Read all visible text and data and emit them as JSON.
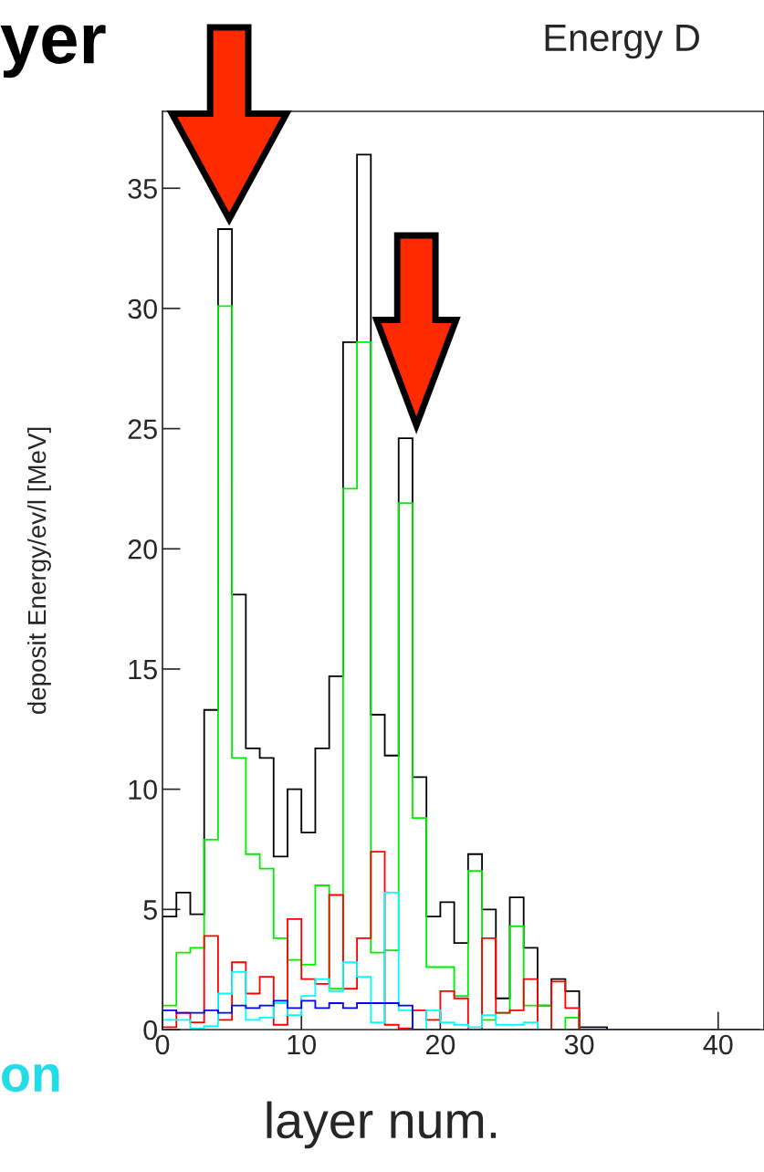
{
  "chart_data": {
    "type": "histogram",
    "title": "Energy D",
    "xlabel": "layer num.",
    "ylabel": "deposit Energy/ev/l [MeV]",
    "annotations": [
      "yer",
      "on"
    ],
    "bins": [
      0,
      1,
      2,
      3,
      4,
      5,
      6,
      7,
      8,
      9,
      10,
      11,
      12,
      13,
      14,
      15,
      16,
      17,
      18,
      19,
      20,
      21,
      22,
      23,
      24,
      25,
      26,
      27,
      28,
      29,
      30,
      31,
      32,
      33,
      34,
      35,
      36,
      37,
      38,
      39,
      40,
      41,
      42,
      43
    ],
    "series": [
      {
        "color": "#000000",
        "values": [
          4.7,
          5.7,
          4.8,
          13.3,
          33.3,
          18.1,
          11.7,
          11.3,
          7.2,
          10.0,
          8.2,
          11.7,
          14.7,
          28.6,
          36.4,
          13.1,
          11.4,
          24.6,
          10.5,
          4.7,
          5.3,
          3.6,
          7.3,
          5.0,
          1.3,
          5.5,
          3.4,
          1.0,
          2.1,
          1.6,
          0.1,
          0.1,
          0,
          0,
          0,
          0,
          0,
          0,
          0,
          0,
          0,
          0,
          0
        ]
      },
      {
        "color": "#00ee00",
        "values": [
          1.0,
          3.2,
          3.4,
          7.9,
          30.1,
          11.3,
          7.3,
          6.7,
          3.8,
          2.9,
          2.7,
          6.0,
          1.7,
          22.5,
          28.6,
          3.2,
          3.3,
          21.9,
          8.8,
          2.6,
          2.6,
          1.4,
          6.6,
          0.4,
          0.7,
          4.3,
          1.0,
          1.0,
          0,
          0.5,
          0,
          0,
          0,
          0,
          0,
          0,
          0,
          0,
          0,
          0,
          0,
          0,
          0
        ]
      },
      {
        "color": "#ff0000",
        "values": [
          0.1,
          0.7,
          0.3,
          3.9,
          0.4,
          2.8,
          1.5,
          2.2,
          0.2,
          4.6,
          2.1,
          1.9,
          5.6,
          1.7,
          3.8,
          7.4,
          0.2,
          0.05,
          0.8,
          0.4,
          1.6,
          1.3,
          0,
          3.8,
          0.7,
          0.8,
          2.1,
          0,
          2.0,
          0.9,
          0,
          0,
          0,
          0,
          0,
          0,
          0,
          0,
          0,
          0,
          0,
          0,
          0
        ]
      },
      {
        "color": "#00ffff",
        "values": [
          0.4,
          0.4,
          0.05,
          0.15,
          1.5,
          2.4,
          0.4,
          0.5,
          1.1,
          0.6,
          1.4,
          2.1,
          1.6,
          2.8,
          2.2,
          0.3,
          5.7,
          0.8,
          0,
          0.8,
          0.3,
          0.2,
          0.1,
          0.6,
          0.2,
          0.2,
          0.3,
          0,
          0,
          0,
          0,
          0,
          0,
          0,
          0,
          0,
          0,
          0,
          0,
          0,
          0,
          0,
          0
        ]
      },
      {
        "color": "#0000ff",
        "values": [
          0.8,
          0.7,
          0.7,
          0.8,
          0.7,
          1.0,
          0.9,
          1.0,
          1.2,
          0.9,
          1.2,
          0.9,
          1.1,
          0.9,
          1.1,
          1.1,
          1.1,
          1.0,
          0,
          0,
          0,
          0,
          0,
          0,
          0,
          0,
          0,
          0,
          0,
          0,
          0,
          0,
          0,
          0,
          0,
          0,
          0,
          0,
          0,
          0,
          0,
          0,
          0
        ]
      }
    ],
    "xlim": [
      0,
      43.3
    ],
    "ylim": [
      0,
      38.2
    ],
    "xticks": [
      0,
      10,
      20,
      30,
      40
    ],
    "yticks": [
      0,
      5,
      10,
      15,
      20,
      25,
      30,
      35
    ],
    "grid": false
  }
}
